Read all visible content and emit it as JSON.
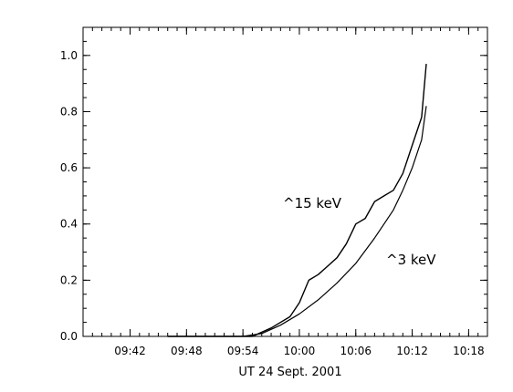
{
  "chart_data": {
    "type": "line",
    "xlabel": "UT 24 Sept. 2001",
    "ylabel": "",
    "title": "",
    "xlim": [
      "09:37",
      "10:20"
    ],
    "ylim": [
      0.0,
      1.1
    ],
    "x_ticks": [
      "09:42",
      "09:48",
      "09:54",
      "10:00",
      "10:06",
      "10:12",
      "10:18"
    ],
    "y_ticks": [
      "0.0",
      "0.2",
      "0.4",
      "0.6",
      "0.8",
      "1.0"
    ],
    "grid": false,
    "series": [
      {
        "name": "",
        "label": "^15 keV",
        "x": [
          "09:46",
          "09:50",
          "09:55",
          "09:57",
          "09:59",
          "10:00",
          "10:01",
          "10:02",
          "10:03",
          "10:04",
          "10:05",
          "10:06",
          "10:07",
          "10:08",
          "10:09",
          "10:10",
          "10:11",
          "10:12",
          "10:13",
          "10:13.5"
        ],
        "y": [
          0.0,
          0.0,
          0.0,
          0.03,
          0.07,
          0.12,
          0.2,
          0.22,
          0.25,
          0.28,
          0.33,
          0.4,
          0.42,
          0.48,
          0.5,
          0.52,
          0.58,
          0.68,
          0.78,
          0.97
        ]
      },
      {
        "name": "",
        "label": "^3 keV",
        "x": [
          "09:46",
          "09:54",
          "09:56",
          "09:58",
          "10:00",
          "10:02",
          "10:04",
          "10:06",
          "10:08",
          "10:10",
          "10:11",
          "10:12",
          "10:13",
          "10:13.5"
        ],
        "y": [
          0.0,
          0.0,
          0.01,
          0.04,
          0.08,
          0.13,
          0.19,
          0.26,
          0.35,
          0.45,
          0.52,
          0.6,
          0.7,
          0.82
        ]
      }
    ]
  }
}
